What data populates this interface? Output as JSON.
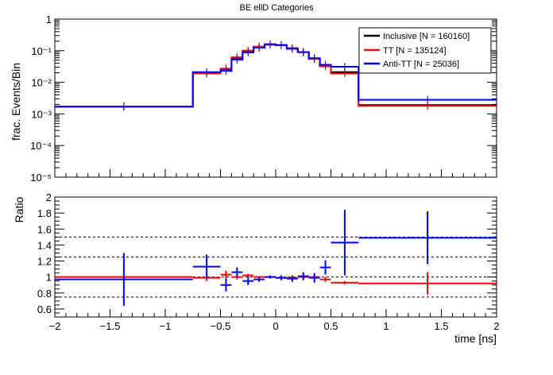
{
  "chart_data": [
    {
      "type": "step",
      "title": "BE ellD Categories",
      "xlabel": "",
      "ylabel": "frac. Events/Bin",
      "xlim": [
        -2,
        2
      ],
      "ylim": [
        1e-05,
        1
      ],
      "yscale": "log",
      "ytick_labels": [
        "10⁻⁵",
        "10⁻⁴",
        "10⁻³",
        "10⁻²",
        "10⁻¹",
        "1"
      ],
      "ytick_values": [
        1e-05,
        0.0001,
        0.001,
        0.01,
        0.1,
        1
      ],
      "bin_edges": [
        -2.0,
        -0.75,
        -0.5,
        -0.4,
        -0.3,
        -0.2,
        -0.1,
        0.0,
        0.1,
        0.2,
        0.3,
        0.4,
        0.5,
        0.75,
        2.0
      ],
      "legend_position": "top-right",
      "series": [
        {
          "name": "Inclusive [N = 160160]",
          "color": "#000000",
          "values": [
            0.0017,
            0.019,
            0.026,
            0.058,
            0.095,
            0.13,
            0.155,
            0.15,
            0.12,
            0.09,
            0.055,
            0.033,
            0.021,
            0.0019
          ]
        },
        {
          "name": "TT [N = 135124]",
          "color": "#ff0000",
          "values": [
            0.0017,
            0.019,
            0.027,
            0.062,
            0.1,
            0.135,
            0.155,
            0.15,
            0.12,
            0.09,
            0.056,
            0.032,
            0.019,
            0.0018
          ]
        },
        {
          "name": "Anti-TT [N = 25036]",
          "color": "#0000ff",
          "values": [
            0.0017,
            0.021,
            0.023,
            0.052,
            0.088,
            0.125,
            0.16,
            0.15,
            0.115,
            0.09,
            0.058,
            0.036,
            0.031,
            0.0028
          ]
        }
      ]
    },
    {
      "type": "scatter",
      "title": "",
      "xlabel": "time [ns]",
      "ylabel": "Ratio",
      "xlim": [
        -2,
        2
      ],
      "ylim": [
        0.5,
        2
      ],
      "xtick_labels": [
        "−2",
        "−1.5",
        "−1",
        "−0.5",
        "0",
        "0.5",
        "1",
        "1.5",
        "2"
      ],
      "xtick_values": [
        -2,
        -1.5,
        -1,
        -0.5,
        0,
        0.5,
        1,
        1.5,
        2
      ],
      "ytick_labels": [
        "0.6",
        "0.8",
        "1",
        "1.2",
        "1.4",
        "1.6",
        "1.8",
        "2"
      ],
      "ytick_values": [
        0.6,
        0.8,
        1,
        1.2,
        1.4,
        1.6,
        1.8,
        2
      ],
      "reference_lines": [
        0.75,
        1.0,
        1.25,
        1.5
      ],
      "series": [
        {
          "name": "TT [N = 135124]",
          "color": "#ff0000",
          "points": [
            {
              "x": -1.375,
              "xlo": -2.0,
              "xhi": -0.75,
              "y": 1.0,
              "err": 0.01
            },
            {
              "x": -0.625,
              "xlo": -0.75,
              "xhi": -0.5,
              "y": 0.99,
              "err": 0.04
            },
            {
              "x": -0.45,
              "xlo": -0.5,
              "xhi": -0.4,
              "y": 1.03,
              "err": 0.05
            },
            {
              "x": -0.35,
              "xlo": -0.4,
              "xhi": -0.3,
              "y": 1.0,
              "err": 0.03
            },
            {
              "x": -0.25,
              "xlo": -0.3,
              "xhi": -0.2,
              "y": 1.02,
              "err": 0.02
            },
            {
              "x": -0.15,
              "xlo": -0.2,
              "xhi": -0.1,
              "y": 1.0,
              "err": 0.01
            },
            {
              "x": -0.05,
              "xlo": -0.1,
              "xhi": 0.0,
              "y": 1.0,
              "err": 0.01
            },
            {
              "x": 0.05,
              "xlo": 0.0,
              "xhi": 0.1,
              "y": 0.99,
              "err": 0.01
            },
            {
              "x": 0.15,
              "xlo": 0.1,
              "xhi": 0.2,
              "y": 0.99,
              "err": 0.01
            },
            {
              "x": 0.25,
              "xlo": 0.2,
              "xhi": 0.3,
              "y": 1.0,
              "err": 0.02
            },
            {
              "x": 0.35,
              "xlo": 0.3,
              "xhi": 0.4,
              "y": 1.0,
              "err": 0.02
            },
            {
              "x": 0.45,
              "xlo": 0.4,
              "xhi": 0.5,
              "y": 0.97,
              "err": 0.03
            },
            {
              "x": 0.625,
              "xlo": 0.5,
              "xhi": 0.75,
              "y": 0.93,
              "err": 0.02
            },
            {
              "x": 1.375,
              "xlo": 0.75,
              "xhi": 2.0,
              "y": 0.92,
              "err": 0.14
            }
          ]
        },
        {
          "name": "Anti-TT [N = 25036]",
          "color": "#0000ff",
          "points": [
            {
              "x": -1.375,
              "xlo": -2.0,
              "xhi": -0.75,
              "y": 0.97,
              "err": 0.33
            },
            {
              "x": -0.625,
              "xlo": -0.75,
              "xhi": -0.5,
              "y": 1.13,
              "err": 0.15
            },
            {
              "x": -0.45,
              "xlo": -0.5,
              "xhi": -0.4,
              "y": 0.9,
              "err": 0.08
            },
            {
              "x": -0.35,
              "xlo": -0.4,
              "xhi": -0.3,
              "y": 1.06,
              "err": 0.06
            },
            {
              "x": -0.25,
              "xlo": -0.3,
              "xhi": -0.2,
              "y": 0.95,
              "err": 0.05
            },
            {
              "x": -0.15,
              "xlo": -0.2,
              "xhi": -0.1,
              "y": 0.97,
              "err": 0.03
            },
            {
              "x": -0.05,
              "xlo": -0.1,
              "xhi": 0.0,
              "y": 1.0,
              "err": 0.02
            },
            {
              "x": 0.05,
              "xlo": 0.0,
              "xhi": 0.1,
              "y": 0.99,
              "err": 0.03
            },
            {
              "x": 0.15,
              "xlo": 0.1,
              "xhi": 0.2,
              "y": 0.98,
              "err": 0.04
            },
            {
              "x": 0.25,
              "xlo": 0.2,
              "xhi": 0.3,
              "y": 1.01,
              "err": 0.05
            },
            {
              "x": 0.35,
              "xlo": 0.3,
              "xhi": 0.4,
              "y": 0.99,
              "err": 0.06
            },
            {
              "x": 0.45,
              "xlo": 0.4,
              "xhi": 0.5,
              "y": 1.12,
              "err": 0.09
            },
            {
              "x": 0.625,
              "xlo": 0.5,
              "xhi": 0.75,
              "y": 1.43,
              "err": 0.41
            },
            {
              "x": 1.375,
              "xlo": 0.75,
              "xhi": 2.0,
              "y": 1.49,
              "err": 0.33
            }
          ]
        }
      ]
    }
  ]
}
